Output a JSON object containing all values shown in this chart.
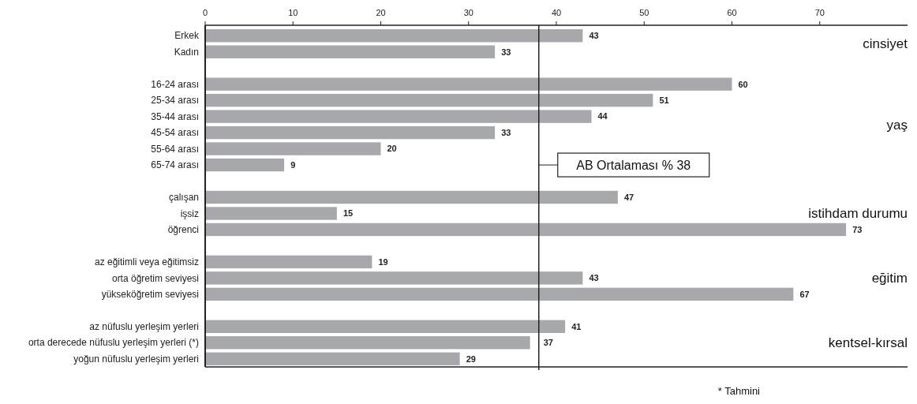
{
  "chart_data": {
    "type": "bar",
    "orientation": "horizontal",
    "categories": [
      "Erkek",
      "Kadın",
      null,
      "16-24 arası",
      "25-34 arası",
      "35-44 arası",
      "45-54 arası",
      "55-64 arası",
      "65-74 arası",
      null,
      "çalışan",
      "işsiz",
      "öğrenci",
      null,
      "az eğitimli veya eğitimsiz",
      "orta öğretim seviyesi",
      "yükseköğretim seviyesi",
      null,
      "az nüfuslu yerleşim yerleri",
      "orta derecede nüfuslu yerleşim yerleri (*)",
      "yoğun nüfuslu yerleşim yerleri"
    ],
    "values": [
      43,
      33,
      null,
      60,
      51,
      44,
      33,
      20,
      9,
      null,
      47,
      15,
      73,
      null,
      19,
      43,
      67,
      null,
      41,
      37,
      29
    ],
    "color": "#a7a8ab",
    "data_labels": true,
    "xlim": [
      0,
      80
    ],
    "xticks": [
      0,
      10,
      20,
      30,
      40,
      50,
      60,
      70
    ],
    "ref_lines": [
      {
        "axis": "x",
        "value": 38,
        "label": "AB Ortalaması % 38"
      }
    ],
    "annotations": [
      "cinsiyet",
      "yaş",
      "istihdam durumu",
      "eğitim",
      "kentsel-kırsal",
      "* Tahmini"
    ]
  }
}
